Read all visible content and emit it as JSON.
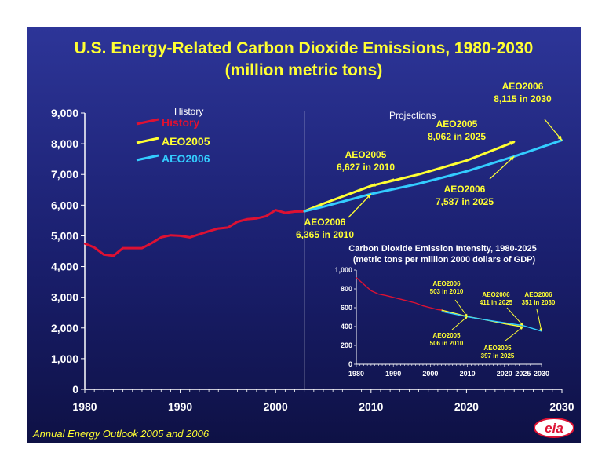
{
  "title": "U.S. Energy-Related Carbon Dioxide Emissions, 1980-2030",
  "subtitle": "(million metric tons)",
  "footer": "Annual Energy Outlook 2005 and 2006",
  "logo_text": "eia",
  "colors": {
    "history": "#dd1133",
    "aeo2005": "#ffff33",
    "aeo2006": "#33ccff",
    "annotation": "#ffff33"
  },
  "chart_data": [
    {
      "type": "line",
      "ylim": [
        0,
        9000
      ],
      "xlim": [
        1980,
        2030
      ],
      "x_ticks": [
        "1980",
        "1990",
        "2000",
        "2010",
        "2020",
        "2030"
      ],
      "y_ticks": [
        "0",
        "1,000",
        "2,000",
        "3,000",
        "4,000",
        "5,000",
        "6,000",
        "7,000",
        "8,000",
        "9,000"
      ],
      "legend": [
        "History",
        "AEO2005",
        "AEO2006"
      ],
      "legend_placement": "top-left",
      "labels": {
        "history": "History",
        "projections": "Projections"
      },
      "series": [
        {
          "name": "History",
          "color": "#dd1133",
          "x": [
            1980,
            1981,
            1982,
            1983,
            1984,
            1985,
            1986,
            1987,
            1988,
            1989,
            1990,
            1991,
            1992,
            1993,
            1994,
            1995,
            1996,
            1997,
            1998,
            1999,
            2000,
            2001,
            2002,
            2003
          ],
          "y": [
            4750,
            4620,
            4390,
            4350,
            4600,
            4600,
            4600,
            4760,
            4950,
            5020,
            5000,
            4950,
            5050,
            5150,
            5240,
            5270,
            5460,
            5540,
            5570,
            5640,
            5840,
            5750,
            5790,
            5800
          ]
        },
        {
          "name": "AEO2005",
          "color": "#ffff33",
          "x": [
            2003,
            2005,
            2010,
            2015,
            2020,
            2025
          ],
          "y": [
            5800,
            6050,
            6627,
            7000,
            7450,
            8062
          ]
        },
        {
          "name": "AEO2006",
          "color": "#33ccff",
          "x": [
            2003,
            2005,
            2010,
            2015,
            2020,
            2025,
            2030
          ],
          "y": [
            5800,
            5950,
            6365,
            6700,
            7100,
            7587,
            8115
          ]
        }
      ],
      "annotations": [
        {
          "lines": [
            "AEO2006",
            "8,115 in 2030"
          ]
        },
        {
          "lines": [
            "AEO2005",
            "8,062 in 2025"
          ]
        },
        {
          "lines": [
            "AEO2005",
            "6,627 in 2010"
          ]
        },
        {
          "lines": [
            "AEO2006",
            "7,587 in 2025"
          ]
        },
        {
          "lines": [
            "AEO2006",
            "6,365 in 2010"
          ]
        }
      ]
    },
    {
      "type": "line",
      "title": "Carbon Dioxide Emission Intensity, 1980-2025",
      "subtitle": "(metric tons per million 2000 dollars of GDP)",
      "ylim": [
        0,
        1000
      ],
      "xlim": [
        1980,
        2030
      ],
      "x_ticks": [
        "1980",
        "1990",
        "2000",
        "2010",
        "2020",
        "2025",
        "2030"
      ],
      "y_ticks": [
        "0",
        "200",
        "400",
        "600",
        "800",
        "1,000"
      ],
      "series": [
        {
          "name": "History",
          "color": "#dd1133",
          "x": [
            1980,
            1982,
            1984,
            1986,
            1988,
            1990,
            1992,
            1994,
            1996,
            1998,
            2000,
            2002,
            2003
          ],
          "y": [
            920,
            850,
            780,
            745,
            730,
            710,
            690,
            670,
            650,
            620,
            600,
            580,
            575
          ]
        },
        {
          "name": "AEO2005",
          "color": "#ffff33",
          "x": [
            2003,
            2010,
            2015,
            2020,
            2025
          ],
          "y": [
            575,
            506,
            470,
            430,
            397
          ]
        },
        {
          "name": "AEO2006",
          "color": "#33ccff",
          "x": [
            2003,
            2010,
            2015,
            2020,
            2025,
            2030
          ],
          "y": [
            560,
            503,
            470,
            440,
            411,
            351
          ]
        }
      ],
      "annotations": [
        {
          "lines": [
            "AEO2006",
            "503 in 2010"
          ]
        },
        {
          "lines": [
            "AEO2006",
            "411 in 2025"
          ]
        },
        {
          "lines": [
            "AEO2006",
            "351 in 2030"
          ]
        },
        {
          "lines": [
            "AEO2005",
            "506 in 2010"
          ]
        },
        {
          "lines": [
            "AEO2005",
            "397 in 2025"
          ]
        }
      ]
    }
  ]
}
